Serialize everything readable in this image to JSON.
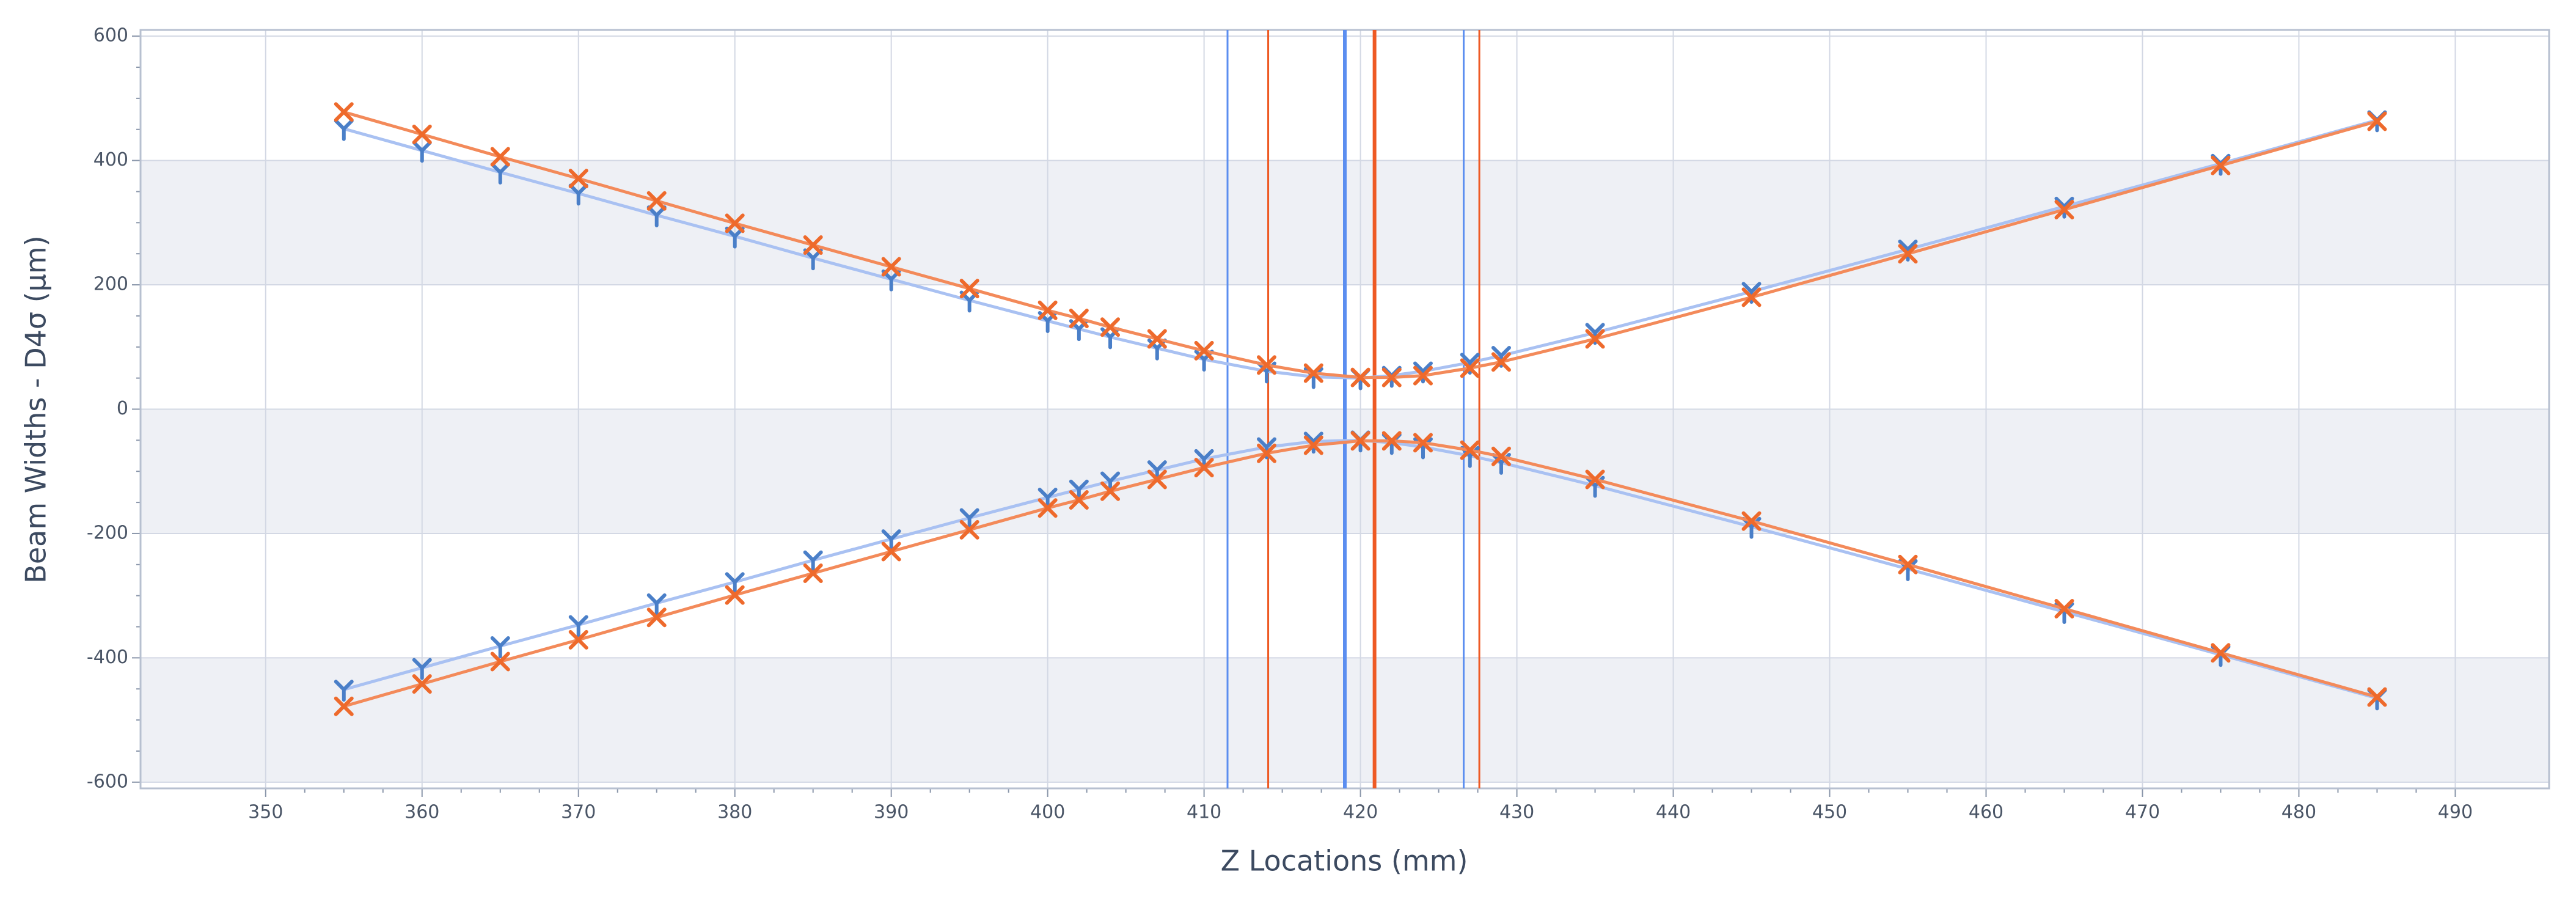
{
  "chart_data": {
    "type": "line",
    "x_label": "Z Locations (mm)",
    "y_label": "Beam Widths - D4σ (μm)",
    "x": [
      355,
      360,
      365,
      370,
      375,
      380,
      385,
      390,
      395,
      400,
      402,
      404,
      407,
      410,
      414,
      417,
      420,
      422,
      424,
      427,
      429,
      435,
      445,
      455,
      465,
      475,
      485
    ],
    "series": [
      {
        "color": "#4a7fc8",
        "line_color": "#a9c1f2",
        "marker": "y",
        "values": [
          451,
          416,
          381,
          347,
          312,
          278,
          243,
          209,
          175,
          142,
          129,
          116,
          98,
          80,
          61,
          52,
          50,
          54,
          61,
          75,
          86,
          123,
          189,
          257,
          326,
          395,
          465
        ]
      },
      {
        "color": "#ee6a2c",
        "line_color": "#f38a5a",
        "marker": "x",
        "values": [
          478,
          442,
          406,
          371,
          335,
          299,
          264,
          229,
          194,
          159,
          146,
          132,
          113,
          94,
          71,
          58,
          51,
          51,
          54,
          66,
          76,
          113,
          180,
          250,
          321,
          392,
          463
        ]
      },
      {
        "color": "#4a7fc8",
        "line_color": "#a9c1f2",
        "marker": "y",
        "values": [
          -451,
          -416,
          -381,
          -347,
          -312,
          -278,
          -243,
          -209,
          -175,
          -142,
          -129,
          -116,
          -98,
          -80,
          -61,
          -52,
          -50,
          -54,
          -61,
          -75,
          -86,
          -123,
          -189,
          -257,
          -326,
          -395,
          -465
        ]
      },
      {
        "color": "#ee6a2c",
        "line_color": "#f38a5a",
        "marker": "x",
        "values": [
          -478,
          -442,
          -406,
          -371,
          -335,
          -299,
          -264,
          -229,
          -194,
          -159,
          -146,
          -132,
          -113,
          -94,
          -71,
          -58,
          -51,
          -51,
          -54,
          -66,
          -76,
          -113,
          -180,
          -250,
          -321,
          -392,
          -463
        ]
      }
    ],
    "vlines": [
      {
        "color": "#5b8ef0",
        "x": [
          411.5,
          419,
          426.6
        ]
      },
      {
        "color": "#ee5a24",
        "x": [
          414.1,
          420.9,
          427.6
        ]
      }
    ],
    "xlim": [
      342,
      496
    ],
    "xticks": [
      350,
      360,
      370,
      380,
      390,
      400,
      410,
      420,
      430,
      440,
      450,
      460,
      470,
      480,
      490
    ],
    "ylim": [
      -610,
      610
    ],
    "yticks": [
      -600,
      -400,
      -200,
      0,
      200,
      400,
      600
    ],
    "grid": true,
    "bands": true
  }
}
